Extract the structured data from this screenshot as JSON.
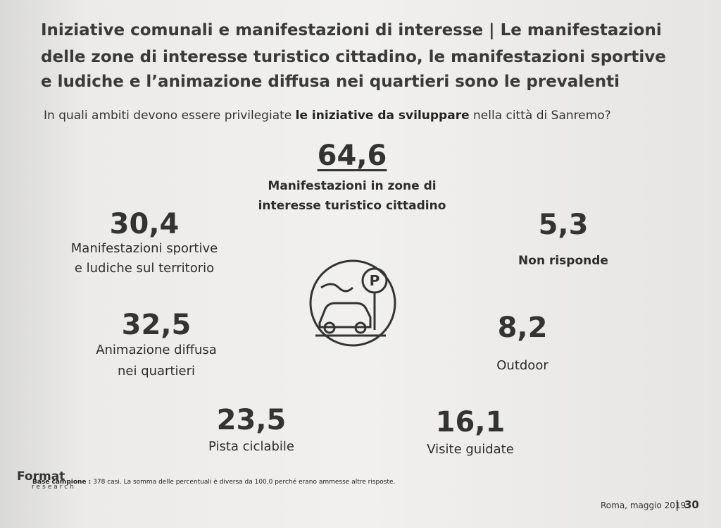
{
  "header": {
    "title_lines": [
      "Iniziative comunali e manifestazioni di interesse | Le manifestazioni",
      "delle zone di interesse turistico cittadino, le manifestazioni sportive",
      "e ludiche e l’animazione diffusa nei quartieri sono le prevalenti"
    ],
    "question_prefix": "In quali ambiti devono essere privilegiate",
    "question_bold": "le iniziative da sviluppare",
    "question_suffix": "nella città di Sanremo?"
  },
  "items": [
    {
      "value": "64,6",
      "label_lines": [
        "Manifestazioni in zone di",
        "interesse turistico cittadino"
      ]
    },
    {
      "value": "30,4",
      "label_lines": [
        "Manifestazioni sportive",
        "e ludiche sul territorio"
      ]
    },
    {
      "value": "32,5",
      "label_lines": [
        "Animazione diffusa",
        "nei quartieri"
      ]
    },
    {
      "value": "23,5",
      "label_lines": [
        "Pista ciclabile"
      ]
    },
    {
      "value": "16,1",
      "label_lines": [
        "Visite guidate"
      ]
    },
    {
      "value": "8,2",
      "label_lines": [
        "Outdoor"
      ]
    },
    {
      "value": "5,3",
      "label_lines": [
        "Non risponde"
      ]
    }
  ],
  "footer": {
    "base_label": "Base campione :",
    "base_text": "378 casi. La somma delle percentuali è diversa da 100,0 perché erano ammesse altre risposte.",
    "logo": "Format",
    "logo_sub": "research",
    "date": "Roma, maggio 2019",
    "page": "30"
  }
}
